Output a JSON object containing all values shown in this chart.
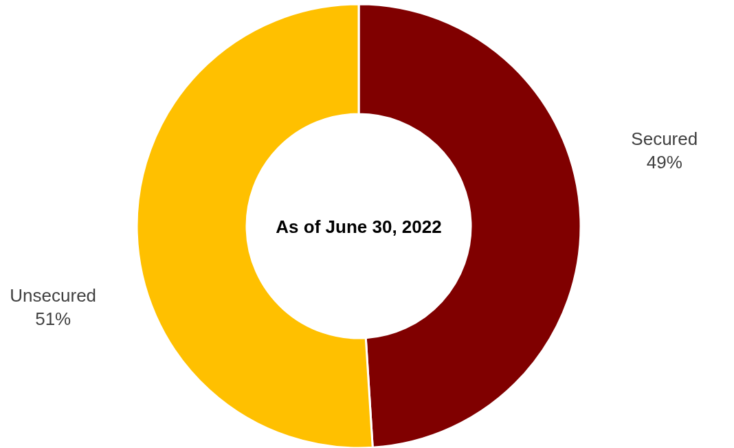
{
  "chart_data": {
    "type": "donut",
    "title": "As of June 30, 2022",
    "categories": [
      "Secured",
      "Unsecured"
    ],
    "values": [
      49,
      51
    ],
    "colors": [
      "#800000",
      "#ffc000"
    ],
    "value_labels": [
      "49%",
      "51%"
    ]
  }
}
